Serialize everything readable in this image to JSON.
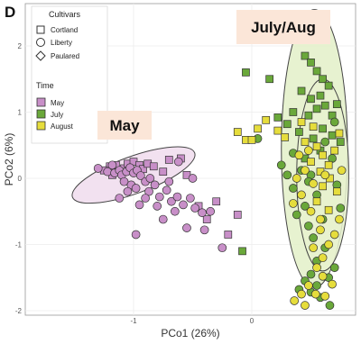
{
  "panel_letter": "D",
  "chart_data": {
    "type": "scatter",
    "xlabel": "PCo1 (26%)",
    "ylabel": "PCo2 (6%)",
    "xlim": [
      -1.55,
      0.9
    ],
    "ylim": [
      -2.05,
      2.3
    ],
    "x_ticks": [
      -1,
      0
    ],
    "x_tick_labels": [
      "-1",
      "0"
    ],
    "y_ticks": [
      2,
      1,
      0,
      -1,
      -2
    ],
    "y_tick_labels": [
      "2",
      "1",
      "0",
      "-1",
      "-2"
    ],
    "grid": true,
    "legend_position": "top-left",
    "legend": {
      "cultivars_title": "Cultivars",
      "cultivars": [
        {
          "label": "Cortland",
          "shape": "square"
        },
        {
          "label": "Liberty",
          "shape": "circle"
        },
        {
          "label": "Paulared",
          "shape": "diamond"
        }
      ],
      "time_title": "Time",
      "time": [
        {
          "label": "May",
          "color": "#c88fc8"
        },
        {
          "label": "July",
          "color": "#6aa83a"
        },
        {
          "label": "August",
          "color": "#e6dd3c"
        }
      ]
    },
    "annotations": [
      {
        "text": "May",
        "box_color": "#fbe6d8"
      },
      {
        "text": "July/Aug",
        "box_color": "#fbe6d8"
      }
    ],
    "ellipses": [
      {
        "group": "May",
        "cx": -1.0,
        "cy": 0.05,
        "rx": 0.55,
        "ry": 0.28,
        "angle_deg": -20,
        "fill": "#f0dced"
      },
      {
        "group": "July/Aug outer",
        "cx": 0.53,
        "cy": 0.45,
        "rx": 0.28,
        "ry": 2.1,
        "angle_deg": 0,
        "fill": "#e3f0c8"
      },
      {
        "group": "July/Aug inner",
        "cx": 0.6,
        "cy": 0.05,
        "rx": 0.22,
        "ry": 1.45,
        "angle_deg": 0,
        "fill": "#e8f2cf"
      }
    ],
    "series": [
      {
        "name": "May",
        "color": "#c88fc8",
        "points": [
          {
            "x": -1.2,
            "y": 0.18,
            "shape": "square"
          },
          {
            "x": -1.15,
            "y": 0.2,
            "shape": "square"
          },
          {
            "x": -1.08,
            "y": 0.15,
            "shape": "square"
          },
          {
            "x": -1.05,
            "y": 0.22,
            "shape": "square"
          },
          {
            "x": -1.0,
            "y": 0.25,
            "shape": "square"
          },
          {
            "x": -0.95,
            "y": 0.2,
            "shape": "square"
          },
          {
            "x": -0.92,
            "y": 0.14,
            "shape": "square"
          },
          {
            "x": -0.88,
            "y": 0.22,
            "shape": "square"
          },
          {
            "x": -0.83,
            "y": 0.18,
            "shape": "square"
          },
          {
            "x": -1.25,
            "y": 0.12,
            "shape": "square"
          },
          {
            "x": -0.75,
            "y": 0.1,
            "shape": "square"
          },
          {
            "x": -0.7,
            "y": 0.28,
            "shape": "square"
          },
          {
            "x": -0.6,
            "y": 0.3,
            "shape": "square"
          },
          {
            "x": -0.55,
            "y": 0.05,
            "shape": "square"
          },
          {
            "x": -0.45,
            "y": -0.42,
            "shape": "square"
          },
          {
            "x": -0.38,
            "y": -0.62,
            "shape": "square"
          },
          {
            "x": -0.2,
            "y": -0.85,
            "shape": "square"
          },
          {
            "x": -0.12,
            "y": -0.55,
            "shape": "square"
          },
          {
            "x": -0.3,
            "y": -0.35,
            "shape": "square"
          },
          {
            "x": -1.18,
            "y": 0.05,
            "shape": "square"
          },
          {
            "x": -1.22,
            "y": 0.1,
            "shape": "circle"
          },
          {
            "x": -1.16,
            "y": 0.08,
            "shape": "circle"
          },
          {
            "x": -1.12,
            "y": 0.12,
            "shape": "circle"
          },
          {
            "x": -1.1,
            "y": 0.05,
            "shape": "circle"
          },
          {
            "x": -1.06,
            "y": 0.1,
            "shape": "circle"
          },
          {
            "x": -1.03,
            "y": 0.16,
            "shape": "circle"
          },
          {
            "x": -1.0,
            "y": 0.08,
            "shape": "circle"
          },
          {
            "x": -0.97,
            "y": 0.12,
            "shape": "circle"
          },
          {
            "x": -0.94,
            "y": 0.04,
            "shape": "circle"
          },
          {
            "x": -1.08,
            "y": -0.05,
            "shape": "circle"
          },
          {
            "x": -1.02,
            "y": -0.1,
            "shape": "circle"
          },
          {
            "x": -0.98,
            "y": -0.15,
            "shape": "circle"
          },
          {
            "x": -0.9,
            "y": -0.05,
            "shape": "circle"
          },
          {
            "x": -0.87,
            "y": -0.2,
            "shape": "circle"
          },
          {
            "x": -0.82,
            "y": -0.1,
            "shape": "circle"
          },
          {
            "x": -0.78,
            "y": -0.28,
            "shape": "circle"
          },
          {
            "x": -0.72,
            "y": -0.18,
            "shape": "circle"
          },
          {
            "x": -0.68,
            "y": -0.35,
            "shape": "circle"
          },
          {
            "x": -0.63,
            "y": -0.28,
            "shape": "circle"
          },
          {
            "x": -0.58,
            "y": -0.4,
            "shape": "circle"
          },
          {
            "x": -0.52,
            "y": -0.3,
            "shape": "circle"
          },
          {
            "x": -0.48,
            "y": -0.45,
            "shape": "circle"
          },
          {
            "x": -0.8,
            "y": -0.42,
            "shape": "circle"
          },
          {
            "x": -0.65,
            "y": -0.5,
            "shape": "circle"
          },
          {
            "x": -0.55,
            "y": -0.75,
            "shape": "circle"
          },
          {
            "x": -0.4,
            "y": -0.78,
            "shape": "circle"
          },
          {
            "x": -0.75,
            "y": -0.62,
            "shape": "circle"
          },
          {
            "x": -0.98,
            "y": -0.85,
            "shape": "circle"
          },
          {
            "x": -1.12,
            "y": -0.3,
            "shape": "circle"
          },
          {
            "x": -0.62,
            "y": 0.25,
            "shape": "circle"
          },
          {
            "x": -0.5,
            "y": 0.0,
            "shape": "circle"
          },
          {
            "x": -1.18,
            "y": 0.2,
            "shape": "circle"
          },
          {
            "x": -1.3,
            "y": 0.15,
            "shape": "circle"
          },
          {
            "x": -0.86,
            "y": 0.0,
            "shape": "circle"
          },
          {
            "x": -0.42,
            "y": -0.52,
            "shape": "circle"
          },
          {
            "x": -0.25,
            "y": -1.05,
            "shape": "circle"
          },
          {
            "x": -0.95,
            "y": -0.4,
            "shape": "circle"
          },
          {
            "x": -0.7,
            "y": -0.05,
            "shape": "circle"
          },
          {
            "x": -1.05,
            "y": -0.2,
            "shape": "circle"
          },
          {
            "x": -0.9,
            "y": -0.3,
            "shape": "circle"
          },
          {
            "x": -0.35,
            "y": -0.5,
            "shape": "circle"
          }
        ]
      },
      {
        "name": "July",
        "color": "#6aa83a",
        "points": [
          {
            "x": -0.05,
            "y": 1.6,
            "shape": "square"
          },
          {
            "x": 0.15,
            "y": 1.5,
            "shape": "square"
          },
          {
            "x": 0.22,
            "y": 0.92,
            "shape": "square"
          },
          {
            "x": 0.35,
            "y": 1.0,
            "shape": "square"
          },
          {
            "x": 0.45,
            "y": 1.85,
            "shape": "square"
          },
          {
            "x": 0.5,
            "y": 1.75,
            "shape": "square"
          },
          {
            "x": 0.55,
            "y": 1.62,
            "shape": "square"
          },
          {
            "x": 0.6,
            "y": 1.5,
            "shape": "square"
          },
          {
            "x": 0.65,
            "y": 1.4,
            "shape": "square"
          },
          {
            "x": 0.42,
            "y": 1.32,
            "shape": "square"
          },
          {
            "x": 0.5,
            "y": 1.2,
            "shape": "square"
          },
          {
            "x": 0.58,
            "y": 1.25,
            "shape": "square"
          },
          {
            "x": 0.62,
            "y": 1.1,
            "shape": "square"
          },
          {
            "x": 0.55,
            "y": 1.05,
            "shape": "square"
          },
          {
            "x": 0.48,
            "y": 0.95,
            "shape": "square"
          },
          {
            "x": 0.68,
            "y": 0.95,
            "shape": "square"
          },
          {
            "x": 0.72,
            "y": 1.12,
            "shape": "square"
          },
          {
            "x": 0.3,
            "y": 0.82,
            "shape": "square"
          },
          {
            "x": 0.6,
            "y": 0.75,
            "shape": "square"
          },
          {
            "x": 0.4,
            "y": 0.7,
            "shape": "square"
          },
          {
            "x": 0.52,
            "y": 0.6,
            "shape": "square"
          },
          {
            "x": 0.68,
            "y": 0.65,
            "shape": "square"
          },
          {
            "x": 0.75,
            "y": 0.55,
            "shape": "square"
          },
          {
            "x": 0.58,
            "y": 0.42,
            "shape": "square"
          },
          {
            "x": -0.08,
            "y": -1.1,
            "shape": "square"
          },
          {
            "x": 0.45,
            "y": 0.3,
            "shape": "square"
          },
          {
            "x": 0.05,
            "y": 0.6,
            "shape": "circle"
          },
          {
            "x": 0.25,
            "y": 0.2,
            "shape": "circle"
          },
          {
            "x": 0.35,
            "y": 0.38,
            "shape": "circle"
          },
          {
            "x": 0.3,
            "y": 0.05,
            "shape": "circle"
          },
          {
            "x": 0.42,
            "y": 0.12,
            "shape": "circle"
          },
          {
            "x": 0.35,
            "y": -0.15,
            "shape": "circle"
          },
          {
            "x": 0.5,
            "y": 0.05,
            "shape": "circle"
          },
          {
            "x": 0.55,
            "y": -0.25,
            "shape": "circle"
          },
          {
            "x": 0.45,
            "y": -0.42,
            "shape": "circle"
          },
          {
            "x": 0.38,
            "y": -0.55,
            "shape": "circle"
          },
          {
            "x": 0.48,
            "y": -0.72,
            "shape": "circle"
          },
          {
            "x": 0.6,
            "y": -0.62,
            "shape": "circle"
          },
          {
            "x": 0.52,
            "y": -0.9,
            "shape": "circle"
          },
          {
            "x": 0.62,
            "y": -1.05,
            "shape": "circle"
          },
          {
            "x": 0.55,
            "y": -1.25,
            "shape": "circle"
          },
          {
            "x": 0.5,
            "y": -1.45,
            "shape": "circle"
          },
          {
            "x": 0.45,
            "y": -1.55,
            "shape": "circle"
          },
          {
            "x": 0.5,
            "y": -1.72,
            "shape": "circle"
          },
          {
            "x": 0.55,
            "y": -1.62,
            "shape": "circle"
          },
          {
            "x": 0.65,
            "y": -1.5,
            "shape": "circle"
          },
          {
            "x": 0.7,
            "y": -1.35,
            "shape": "circle"
          },
          {
            "x": 0.68,
            "y": 0.3,
            "shape": "circle"
          },
          {
            "x": 0.72,
            "y": -0.1,
            "shape": "circle"
          },
          {
            "x": 0.75,
            "y": -0.45,
            "shape": "circle"
          },
          {
            "x": 0.62,
            "y": 0.55,
            "shape": "circle"
          },
          {
            "x": 0.7,
            "y": 0.85,
            "shape": "circle"
          },
          {
            "x": 0.58,
            "y": -1.8,
            "shape": "circle"
          },
          {
            "x": 0.66,
            "y": -1.92,
            "shape": "circle"
          },
          {
            "x": 0.4,
            "y": -1.68,
            "shape": "circle"
          },
          {
            "x": 0.48,
            "y": -0.05,
            "shape": "circle"
          }
        ]
      },
      {
        "name": "August",
        "color": "#e6dd3c",
        "points": [
          {
            "x": -0.12,
            "y": 0.7,
            "shape": "square"
          },
          {
            "x": -0.05,
            "y": 0.58,
            "shape": "square"
          },
          {
            "x": 0.0,
            "y": 0.58,
            "shape": "square"
          },
          {
            "x": 0.05,
            "y": 0.75,
            "shape": "square"
          },
          {
            "x": 0.12,
            "y": 0.88,
            "shape": "square"
          },
          {
            "x": 0.22,
            "y": 0.72,
            "shape": "square"
          },
          {
            "x": 0.28,
            "y": 0.62,
            "shape": "square"
          },
          {
            "x": 0.42,
            "y": 0.85,
            "shape": "square"
          },
          {
            "x": 0.45,
            "y": 0.55,
            "shape": "square"
          },
          {
            "x": 0.52,
            "y": 0.78,
            "shape": "square"
          },
          {
            "x": 0.55,
            "y": 0.48,
            "shape": "square"
          },
          {
            "x": 0.6,
            "y": 0.35,
            "shape": "square"
          },
          {
            "x": 0.65,
            "y": 0.2,
            "shape": "square"
          },
          {
            "x": 0.7,
            "y": 0.42,
            "shape": "square"
          },
          {
            "x": 0.5,
            "y": 0.25,
            "shape": "square"
          },
          {
            "x": 0.58,
            "y": 0.1,
            "shape": "square"
          },
          {
            "x": 0.66,
            "y": 0.0,
            "shape": "square"
          },
          {
            "x": 0.6,
            "y": -0.12,
            "shape": "square"
          },
          {
            "x": 0.72,
            "y": -0.2,
            "shape": "square"
          },
          {
            "x": 0.55,
            "y": -0.35,
            "shape": "square"
          },
          {
            "x": 0.65,
            "y": -0.48,
            "shape": "square"
          },
          {
            "x": 0.74,
            "y": 0.68,
            "shape": "square"
          },
          {
            "x": 0.4,
            "y": 0.35,
            "shape": "circle"
          },
          {
            "x": 0.45,
            "y": 0.12,
            "shape": "circle"
          },
          {
            "x": 0.52,
            "y": -0.08,
            "shape": "circle"
          },
          {
            "x": 0.42,
            "y": -0.25,
            "shape": "circle"
          },
          {
            "x": 0.5,
            "y": -0.5,
            "shape": "circle"
          },
          {
            "x": 0.58,
            "y": -0.78,
            "shape": "circle"
          },
          {
            "x": 0.52,
            "y": -1.05,
            "shape": "circle"
          },
          {
            "x": 0.6,
            "y": -1.2,
            "shape": "circle"
          },
          {
            "x": 0.55,
            "y": -1.35,
            "shape": "circle"
          },
          {
            "x": 0.48,
            "y": -1.62,
            "shape": "circle"
          },
          {
            "x": 0.42,
            "y": -1.75,
            "shape": "circle"
          },
          {
            "x": 0.36,
            "y": -1.85,
            "shape": "circle"
          },
          {
            "x": 0.45,
            "y": -1.92,
            "shape": "circle"
          },
          {
            "x": 0.6,
            "y": -1.48,
            "shape": "circle"
          },
          {
            "x": 0.68,
            "y": -1.6,
            "shape": "circle"
          },
          {
            "x": 0.7,
            "y": -0.85,
            "shape": "circle"
          },
          {
            "x": 0.74,
            "y": -0.62,
            "shape": "circle"
          },
          {
            "x": 0.76,
            "y": 0.12,
            "shape": "circle"
          },
          {
            "x": 0.62,
            "y": 0.05,
            "shape": "circle"
          },
          {
            "x": 0.58,
            "y": -0.62,
            "shape": "circle"
          },
          {
            "x": 0.65,
            "y": -1.0,
            "shape": "circle"
          },
          {
            "x": 0.35,
            "y": -0.38,
            "shape": "circle"
          },
          {
            "x": 0.38,
            "y": 0.0,
            "shape": "circle"
          },
          {
            "x": 0.48,
            "y": 0.42,
            "shape": "circle"
          },
          {
            "x": 0.54,
            "y": -1.75,
            "shape": "circle"
          },
          {
            "x": 0.62,
            "y": -1.78,
            "shape": "circle"
          }
        ]
      }
    ]
  }
}
